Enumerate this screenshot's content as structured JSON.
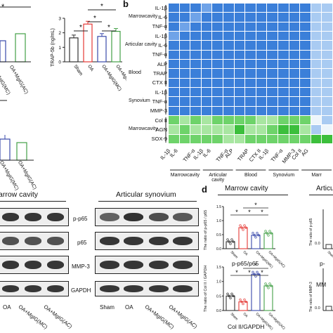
{
  "panel_letters": {
    "b": "b",
    "d": "d"
  },
  "top_left": {
    "y_axis_label": "TRAP-5b (ng/mL)",
    "y_ticks": [
      "0",
      "1",
      "2",
      "3"
    ],
    "x_labels": [
      "Sham",
      "OA",
      "OA+MgIG(MC)",
      "OA+MgIG(AC)"
    ],
    "partial_x_labels": [
      "OA+MgIG(MC)",
      "OA+MgIG(AC)"
    ],
    "partial_x_labels_lower": [
      "OA+MgIG(MC)",
      "OA+MgIG(AC)"
    ],
    "sig_marks": [
      "*",
      "*",
      "*",
      "*"
    ],
    "partial_sig": "*",
    "bar_colors": [
      "#333333",
      "#e53935",
      "#3949ab",
      "#43a047"
    ],
    "chart_data": {
      "type": "bar",
      "categories": [
        "Sham",
        "OA",
        "OA+MgIG(MC)",
        "OA+MgIG(AC)"
      ],
      "values": [
        1.65,
        2.6,
        1.75,
        2.1
      ],
      "ylabel": "TRAP-5b (ng/mL)",
      "ylim": [
        0,
        3
      ]
    }
  },
  "heatmap": {
    "row_group_labels": [
      "Marrowcavity",
      "Articular cavity",
      "Blood",
      "Synovium",
      "Marrowcavity"
    ],
    "row_labels": [
      "IL-1β",
      "IL-6",
      "TNF-α",
      "IL-1β",
      "IL-6",
      "TNF-α",
      "ALP",
      "TRAP",
      "CTX II",
      "IL-1β",
      "TNF-α",
      "MMP-3",
      "Col II",
      "AGN",
      "SOX-9"
    ],
    "col_labels": [
      "IL-1β",
      "IL-6",
      "TNF-α",
      "IL-1β",
      "IL-6",
      "TNF-α",
      "ALP",
      "TRAP",
      "CTX II",
      "IL-1β",
      "TNF-α",
      "MMP-3",
      "Col II",
      "AG"
    ],
    "col_group_labels": [
      "Marrowcavity",
      "Articular cavity",
      "Blood",
      "Synovium",
      "Marr"
    ],
    "colors": {
      "strong_blue": "#3b7fd9",
      "mid_blue": "#6fa3e8",
      "pale_blue": "#a9cbf2",
      "white": "#eef6fb",
      "pale_green": "#a8e6a1",
      "mid_green": "#6ed36a",
      "strong_green": "#3cbf3c"
    }
  },
  "western": {
    "left_title": "arrow cavity",
    "right_title": "Articular synovium",
    "band_labels": [
      "p-p65",
      "p65",
      "MMP-3",
      "GAPDH"
    ],
    "left_lanes": [
      "OA",
      "OA+MgIG(MC)",
      "OA+MgIG(AC)"
    ],
    "right_lanes": [
      "Sham",
      "OA",
      "OA+MgIG(MC)",
      "OA+MgIG(AC)"
    ]
  },
  "panel_d": {
    "title_left": "Marrow cavity",
    "title_right": "Articu",
    "top_chart_ylabel": "The ratio of p-p65 / p65",
    "top_chart_title": "p-p65/p65",
    "top_y_ticks": [
      "0.0",
      "0.5",
      "1.0",
      "1.5"
    ],
    "x_labels": [
      "Sham",
      "OA",
      "OA+MgIG(MC)",
      "OA+MgIG(AC)"
    ],
    "top_sig": [
      "*",
      "*",
      "*",
      "*"
    ],
    "right_top_title": "p-",
    "right_top_ylabel": "The ratio of p-p65",
    "right_top_tick": "0.0",
    "right_top_x": [
      "Sham",
      "OA"
    ],
    "bottom_chart_ylabel": "The ratio of Col II / GAPDH",
    "bottom_chart_title": "Col II/GAPDH",
    "bottom_y_ticks": [
      "0.0",
      "0.5",
      "1.0",
      "1.5"
    ],
    "bottom_sig": [
      "*",
      "*",
      "*",
      "*"
    ],
    "right_bottom_title": "MM",
    "right_bottom_ylabel": "The ratio of MMP-3",
    "right_bottom_tick": "0.0",
    "chart_data": [
      {
        "type": "bar",
        "title": "p-p65/p65",
        "categories": [
          "Sham",
          "OA",
          "OA+MgIG(MC)",
          "OA+MgIG(AC)"
        ],
        "values": [
          0.25,
          0.75,
          0.48,
          0.55
        ],
        "ylim": [
          0,
          1.5
        ]
      },
      {
        "type": "bar",
        "title": "Col II/GAPDH",
        "categories": [
          "Sham",
          "OA",
          "OA+MgIG(MC)",
          "OA+MgIG(AC)"
        ],
        "values": [
          0.5,
          0.3,
          1.25,
          0.85
        ],
        "ylim": [
          0,
          1.5
        ]
      }
    ]
  }
}
